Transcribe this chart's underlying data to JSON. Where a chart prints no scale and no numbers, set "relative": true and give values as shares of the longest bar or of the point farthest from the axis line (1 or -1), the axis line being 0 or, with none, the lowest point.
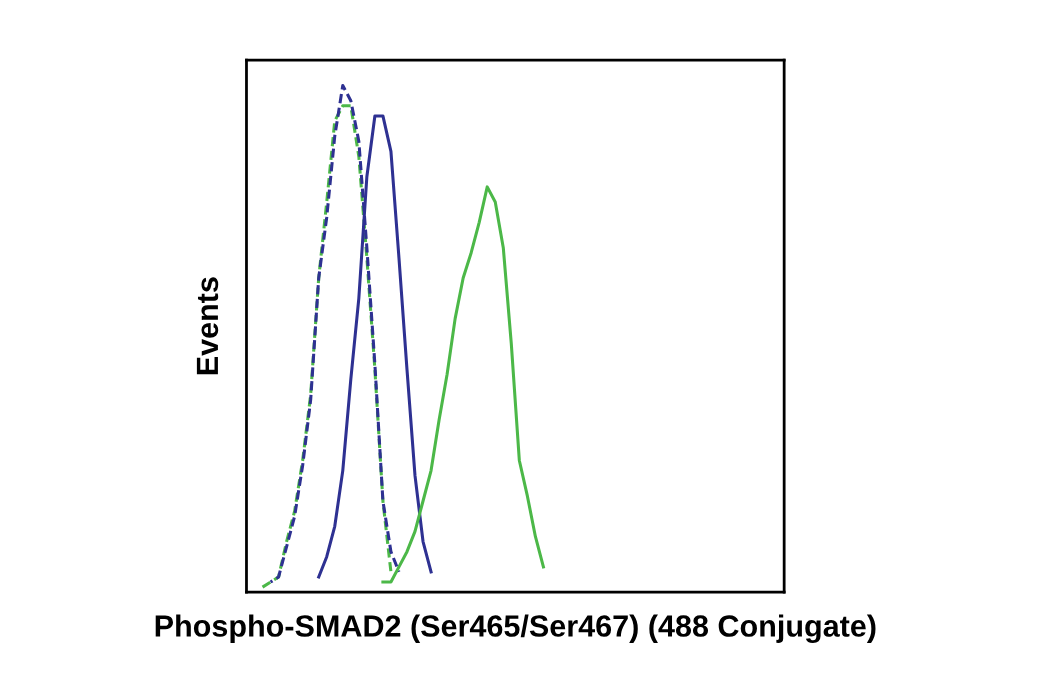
{
  "chart_data": {
    "type": "line",
    "relative": true,
    "xlabel": "Phospho-SMAD2 (Ser465/Ser467) (488 Conjugate)",
    "ylabel": "Events",
    "categories": [
      null,
      null,
      null,
      null,
      null,
      null,
      null,
      null,
      null,
      null,
      null,
      null,
      null,
      null,
      null,
      null,
      null,
      null,
      null,
      null,
      null,
      null,
      null,
      null,
      null,
      null,
      null,
      null,
      null,
      null,
      null,
      null,
      null,
      null,
      null,
      null,
      null,
      null,
      null,
      null,
      null,
      null,
      null,
      null,
      null,
      null,
      null,
      null,
      null,
      null,
      null,
      null,
      null,
      null,
      null,
      null,
      null,
      null,
      null,
      null,
      null,
      null,
      null,
      null,
      null,
      null,
      null,
      null
    ],
    "series": [
      {
        "color": "#4cb848",
        "line_style": "dashed",
        "values": [
          null,
          null,
          0.01,
          0.02,
          0.03,
          0.1,
          0.16,
          0.26,
          0.39,
          0.62,
          0.77,
          0.93,
          0.96,
          0.96,
          0.86,
          0.66,
          0.44,
          0.18,
          0.04,
          null,
          null,
          null,
          null,
          null,
          null,
          null,
          null,
          null,
          null,
          null,
          null,
          null,
          null,
          null,
          null,
          null,
          null,
          null,
          null,
          null,
          null,
          null,
          null,
          null,
          null,
          null,
          null,
          null,
          null,
          null,
          null,
          null,
          null,
          null,
          null,
          null,
          null,
          null,
          null,
          null,
          null,
          null,
          null,
          null,
          null,
          null,
          null,
          null
        ]
      },
      {
        "color": "#2e3192",
        "line_style": "dashed",
        "values": [
          null,
          null,
          null,
          0.02,
          0.03,
          0.09,
          0.15,
          0.25,
          0.38,
          0.62,
          0.74,
          0.9,
          1.0,
          0.97,
          0.89,
          0.68,
          0.45,
          0.18,
          0.08,
          0.04,
          null,
          null,
          null,
          null,
          null,
          null,
          null,
          null,
          null,
          null,
          null,
          null,
          null,
          null,
          null,
          null,
          null,
          null,
          null,
          null,
          null,
          null,
          null,
          null,
          null,
          null,
          null,
          null,
          null,
          null,
          null,
          null,
          null,
          null,
          null,
          null,
          null,
          null,
          null,
          null,
          null,
          null,
          null,
          null,
          null,
          null,
          null,
          null
        ]
      },
      {
        "color": "#2e3192",
        "line_style": "solid",
        "values": [
          null,
          null,
          null,
          null,
          null,
          null,
          null,
          null,
          null,
          0.03,
          0.07,
          0.13,
          0.24,
          0.42,
          0.58,
          0.82,
          0.94,
          0.94,
          0.87,
          0.66,
          0.44,
          0.23,
          0.1,
          0.04,
          null,
          null,
          null,
          null,
          null,
          null,
          null,
          null,
          null,
          null,
          null,
          null,
          null,
          null,
          null,
          null,
          null,
          null,
          null,
          null,
          null,
          null,
          null,
          null,
          null,
          null,
          null,
          null,
          null,
          null,
          null,
          null,
          null,
          null,
          null,
          null,
          null,
          null,
          null,
          null,
          null,
          null,
          null,
          null
        ]
      },
      {
        "color": "#4cb848",
        "line_style": "solid",
        "values": [
          null,
          null,
          null,
          null,
          null,
          null,
          null,
          null,
          null,
          null,
          null,
          null,
          null,
          null,
          null,
          null,
          null,
          0.02,
          0.02,
          0.05,
          0.08,
          0.12,
          0.18,
          0.24,
          0.34,
          0.43,
          0.54,
          0.62,
          0.67,
          0.73,
          0.8,
          0.77,
          0.68,
          0.49,
          0.26,
          0.19,
          0.11,
          0.05,
          null,
          null,
          null,
          null,
          null,
          null,
          null,
          null,
          null,
          null,
          null,
          null,
          null,
          null,
          null,
          null,
          null,
          null,
          null,
          null,
          null,
          null,
          null,
          null,
          null,
          null,
          null,
          null,
          null,
          null
        ]
      }
    ]
  }
}
